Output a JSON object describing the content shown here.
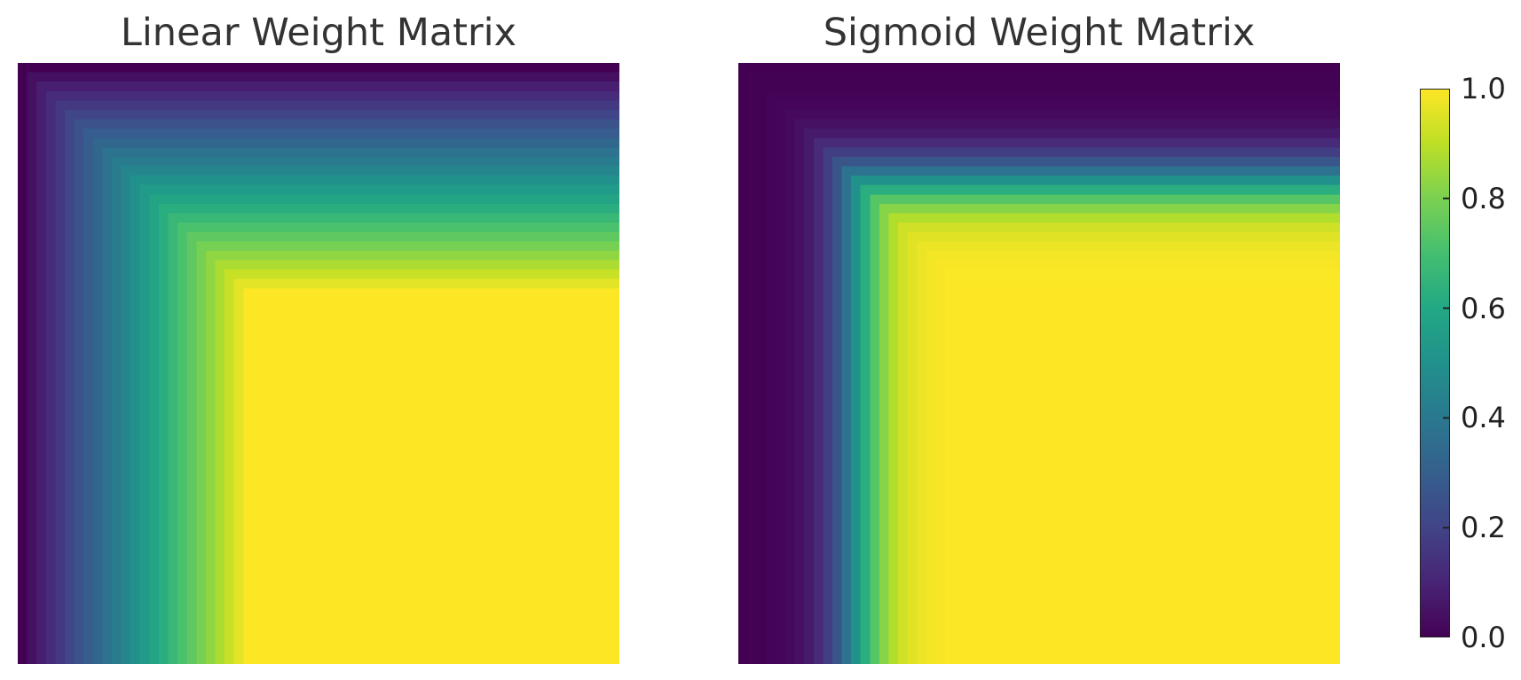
{
  "chart_data": [
    {
      "type": "heatmap",
      "title": "Linear Weight Matrix",
      "function": "linear",
      "grid_size": 64,
      "transition_cells": 24,
      "value_range": [
        0,
        1
      ],
      "description_of_values": "cell(i,j) = min(ramp(i), ramp(j)); ramp rises from 0 at index 0 to 1 at index 24 and stays 1 after",
      "colormap": "viridis",
      "axes_visible": false
    },
    {
      "type": "heatmap",
      "title": "Sigmoid Weight Matrix",
      "function": "sigmoid",
      "grid_size": 64,
      "transition_cells": 24,
      "value_range": [
        0,
        1
      ],
      "description_of_values": "cell(i,j) = min(s(i), s(j)); s is a sigmoid ramp from ~0 at index 0 to ~1 at index 24",
      "colormap": "viridis",
      "axes_visible": false
    }
  ],
  "colorbar": {
    "colormap": "viridis",
    "range": [
      0.0,
      1.0
    ],
    "ticks": [
      "0.0",
      "0.2",
      "0.4",
      "0.6",
      "0.8",
      "1.0"
    ]
  },
  "colors": {
    "viridis_low": "#440154",
    "viridis_high": "#fde725"
  }
}
